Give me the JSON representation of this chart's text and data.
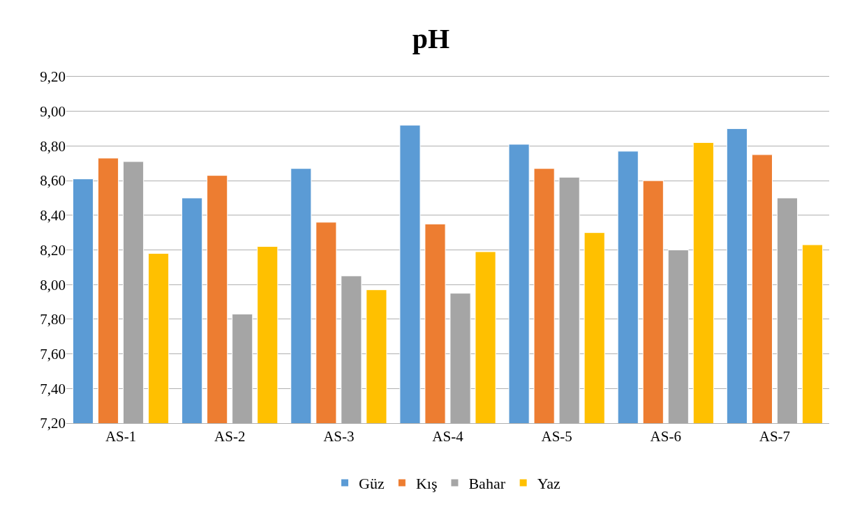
{
  "chart_data": {
    "type": "bar",
    "title": "pH",
    "categories": [
      "AS-1",
      "AS-2",
      "AS-3",
      "AS-4",
      "AS-5",
      "AS-6",
      "AS-7"
    ],
    "series": [
      {
        "name": "Güz",
        "color": "#5b9bd5",
        "values": [
          8.61,
          8.5,
          8.67,
          8.92,
          8.81,
          8.77,
          8.9
        ]
      },
      {
        "name": "Kış",
        "color": "#ed7d31",
        "values": [
          8.73,
          8.63,
          8.36,
          8.35,
          8.67,
          8.6,
          8.75
        ]
      },
      {
        "name": "Bahar",
        "color": "#a5a5a5",
        "values": [
          8.71,
          7.83,
          8.05,
          7.95,
          8.62,
          8.2,
          8.5
        ]
      },
      {
        "name": "Yaz",
        "color": "#ffc000",
        "values": [
          8.18,
          8.22,
          7.97,
          8.19,
          8.3,
          8.82,
          8.23
        ]
      }
    ],
    "ylim": [
      7.2,
      9.2
    ],
    "yticks": [
      {
        "value": 7.2,
        "label": "7,20"
      },
      {
        "value": 7.4,
        "label": "7,40"
      },
      {
        "value": 7.6,
        "label": "7,60"
      },
      {
        "value": 7.8,
        "label": "7,80"
      },
      {
        "value": 8.0,
        "label": "8,00"
      },
      {
        "value": 8.2,
        "label": "8,20"
      },
      {
        "value": 8.4,
        "label": "8,40"
      },
      {
        "value": 8.6,
        "label": "8,60"
      },
      {
        "value": 8.8,
        "label": "8,80"
      },
      {
        "value": 9.0,
        "label": "9,00"
      },
      {
        "value": 9.2,
        "label": "9,20"
      }
    ],
    "grid": "y",
    "legend": "bottom"
  }
}
